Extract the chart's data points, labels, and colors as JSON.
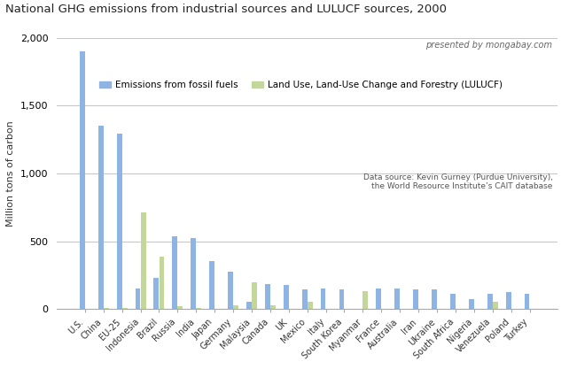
{
  "title": "National GHG emissions from industrial sources and LULUCF sources, 2000",
  "ylabel": "Million tons of carbon",
  "watermark": "presented by mongabay.com",
  "datasource": "Data source: Kevin Gurney (Purdue University),\nthe World Resource Institute’s CAIT database",
  "categories": [
    "U.S.",
    "China",
    "EU-25",
    "Indonesia",
    "Brazil",
    "Russia",
    "India",
    "Japan",
    "Germany",
    "Malaysia",
    "Canada",
    "UK",
    "Mexico",
    "Italy",
    "South Korea",
    "Myanmar",
    "France",
    "Australia",
    "Iran",
    "Ukraine",
    "South Africa",
    "Nigeria",
    "Venezuela",
    "Poland",
    "Turkey"
  ],
  "fossil_fuels": [
    1900,
    1350,
    1290,
    150,
    230,
    535,
    525,
    355,
    275,
    55,
    185,
    175,
    145,
    155,
    145,
    5,
    150,
    150,
    145,
    145,
    115,
    75,
    110,
    125,
    110
  ],
  "lulucf": [
    0,
    10,
    10,
    715,
    385,
    20,
    10,
    5,
    30,
    195,
    30,
    5,
    55,
    5,
    5,
    130,
    5,
    5,
    5,
    5,
    5,
    5,
    55,
    5,
    5
  ],
  "fossil_color": "#8db4e2",
  "lulucf_color": "#c4d79b",
  "ylim": [
    0,
    2000
  ],
  "yticks": [
    0,
    500,
    1000,
    1500,
    2000
  ],
  "legend_fossil": "Emissions from fossil fuels",
  "legend_lulucf": "Land Use, Land-Use Change and Forestry (LULUCF)",
  "bg_color": "#ffffff",
  "plot_bg_color": "#ffffff",
  "grid_color": "#c8c8c8"
}
